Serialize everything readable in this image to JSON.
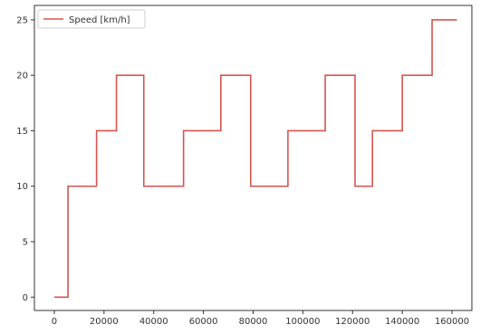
{
  "chart_data": {
    "type": "line",
    "legend": {
      "entries": [
        "Speed [km/h]"
      ],
      "placement": "top-left"
    },
    "series": [
      {
        "name": "Speed [km/h]",
        "color": "#d9534f",
        "x": [
          0,
          5500,
          5500,
          17000,
          17000,
          25000,
          25000,
          36000,
          36000,
          52000,
          52000,
          67000,
          67000,
          79000,
          79000,
          94000,
          94000,
          109000,
          109000,
          121000,
          121000,
          128000,
          128000,
          140000,
          140000,
          152000,
          152000,
          162000
        ],
        "y": [
          0,
          0,
          10,
          10,
          15,
          15,
          20,
          20,
          10,
          10,
          15,
          15,
          20,
          20,
          10,
          10,
          15,
          15,
          20,
          20,
          10,
          10,
          15,
          15,
          20,
          20,
          25,
          25
        ]
      }
    ],
    "xlim": [
      -8000,
      168000
    ],
    "ylim": [
      -1.2,
      26.3
    ],
    "xticks": [
      0,
      20000,
      40000,
      60000,
      80000,
      100000,
      120000,
      140000,
      160000
    ],
    "xtick_labels": [
      "0",
      "20000",
      "40000",
      "60000",
      "80000",
      "100000",
      "120000",
      "140000",
      "160000"
    ],
    "yticks": [
      0,
      5,
      10,
      15,
      20,
      25
    ],
    "ytick_labels": [
      "0",
      "5",
      "10",
      "15",
      "20",
      "25"
    ],
    "grid": false,
    "axis_color": "#333333"
  }
}
